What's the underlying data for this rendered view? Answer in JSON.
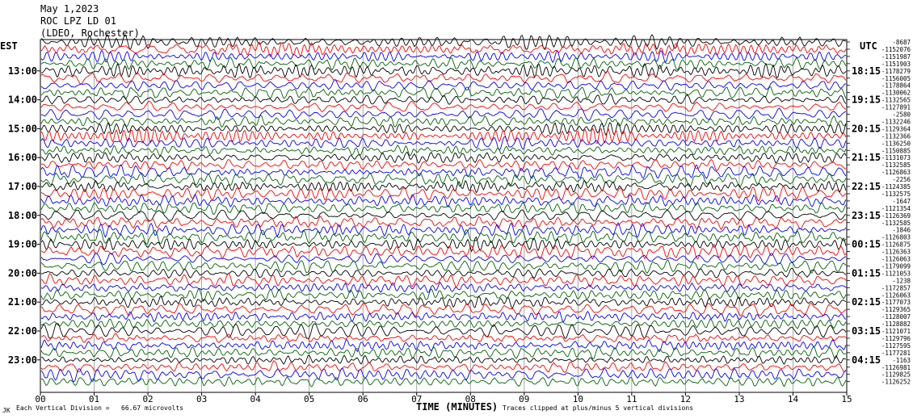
{
  "header": {
    "date": "May 1,2023",
    "station": "ROC LPZ LD 01",
    "network": "(LDEO, Rochester)"
  },
  "left_timezone": "EST",
  "right_timezone": "UTC",
  "footer": {
    "left_mark": "JK",
    "division_note": "Each Vertical Division =   66.67 microvolts",
    "clip_note": "Traces clipped at plus/minus 5 vertical divisions"
  },
  "chart_data": {
    "type": "line",
    "title": "ROC LPZ LD 01",
    "xlabel": "TIME (MINUTES)",
    "xlim": [
      0,
      15
    ],
    "x_ticks": [
      "00",
      "01",
      "02",
      "03",
      "04",
      "05",
      "06",
      "07",
      "08",
      "09",
      "10",
      "11",
      "12",
      "13",
      "14",
      "15"
    ],
    "left_hour_labels": [
      "13:00",
      "14:00",
      "15:00",
      "16:00",
      "17:00",
      "18:00",
      "19:00",
      "20:00",
      "21:00",
      "22:00",
      "23:00"
    ],
    "right_hour_labels": [
      "18:15",
      "19:15",
      "20:15",
      "21:15",
      "22:15",
      "23:15",
      "00:15",
      "01:15",
      "02:15",
      "03:15",
      "04:15"
    ],
    "trace_colors": [
      "#000000",
      "#ff0000",
      "#0000ff",
      "#006400"
    ],
    "traces_per_hour": 4,
    "trace_count": 48,
    "trace_offsets": [
      "-8687",
      "-1152076",
      "-1151987",
      "-1151903",
      "-1178279",
      "-1156005",
      "-1178864",
      "-1130062",
      "-1132565",
      "-1127891",
      "-2580",
      "-1132246",
      "-1129364",
      "-1132366",
      "-1136250",
      "-1150885",
      "-1131073",
      "-1132585",
      "-1126863",
      "-2256",
      "-1124385",
      "-1132575",
      "-1647",
      "-1121354",
      "-1126369",
      "-1132585",
      "-1846",
      "-1126803",
      "-1126875",
      "-1126363",
      "-1126063",
      "-1179099",
      "-1121053",
      "-1238",
      "-1172857",
      "-1126063",
      "-1177073",
      "-1129365",
      "-1128007",
      "-1128882",
      "-1121071",
      "-1129796",
      "-1127595",
      "-1177281",
      "-1163",
      "-1126981",
      "-1129825",
      "-1126252"
    ]
  }
}
